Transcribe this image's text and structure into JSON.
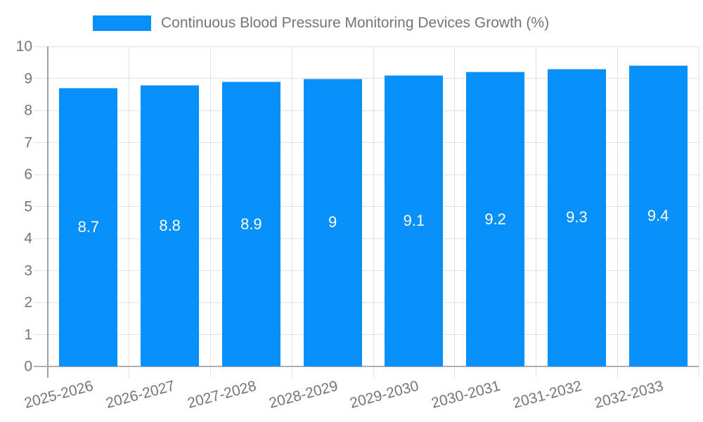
{
  "chart_data": {
    "type": "bar",
    "series_name": "Continuous Blood Pressure Monitoring Devices Growth (%)",
    "categories": [
      "2025-2026",
      "2026-2027",
      "2027-2028",
      "2028-2029",
      "2029-2030",
      "2030-2031",
      "2031-2032",
      "2032-2033"
    ],
    "values": [
      8.7,
      8.8,
      8.9,
      9,
      9.1,
      9.2,
      9.3,
      9.4
    ],
    "bar_value_labels": [
      "8.7",
      "8.8",
      "8.9",
      "9",
      "9.1",
      "9.2",
      "9.3",
      "9.4"
    ],
    "y_tick_labels": [
      "0",
      "1",
      "2",
      "3",
      "4",
      "5",
      "6",
      "7",
      "8",
      "9",
      "10"
    ],
    "ylim": [
      0,
      10
    ],
    "ytick_step": 1,
    "xlabel": "",
    "ylabel": "",
    "grid": true,
    "legend_position": "top",
    "x_label_rotation_deg": -15
  },
  "colors": {
    "bar": "#0890fa",
    "bar_edge": "#6fbcfb",
    "bar_label": "#ffffff",
    "grid": "#e2e2e2",
    "axis": "#9e9e9e",
    "baseline": "#b0b0b0",
    "text": "#757575",
    "background": "#ffffff"
  }
}
